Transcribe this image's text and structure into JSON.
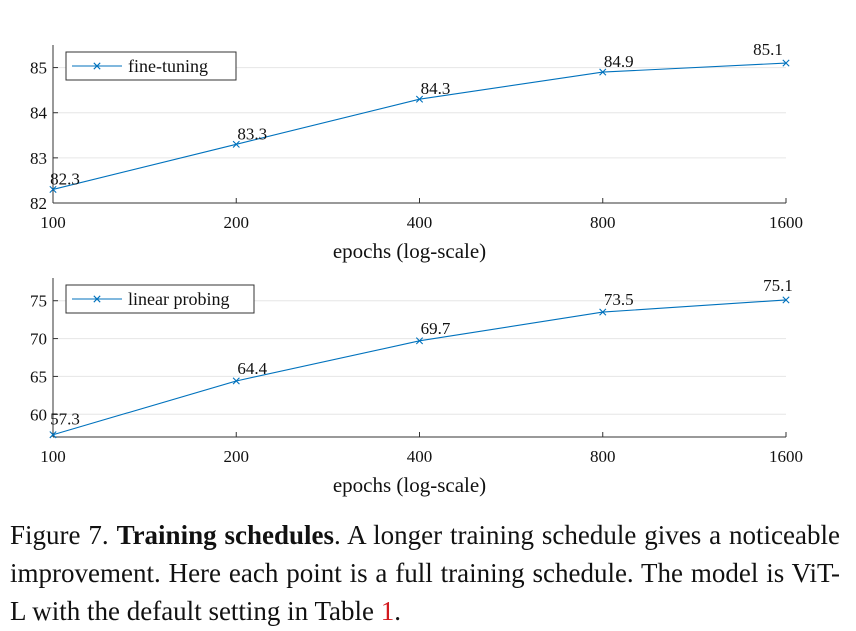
{
  "chart_data": [
    {
      "type": "line",
      "x": [
        100,
        200,
        400,
        800,
        1600
      ],
      "xticks": [
        "100",
        "200",
        "400",
        "800",
        "1600"
      ],
      "xscale": "log",
      "xlabel": "epochs (log-scale)",
      "ylim": [
        82,
        85.5
      ],
      "yticks": [
        82,
        83,
        84,
        85
      ],
      "grid": "horizontal",
      "legend_position": "top-left",
      "series": [
        {
          "name": "fine-tuning",
          "values": [
            82.3,
            83.3,
            84.3,
            84.9,
            85.1
          ],
          "marker": "x",
          "color": "#0072bd"
        }
      ],
      "data_labels": [
        "82.3",
        "83.3",
        "84.3",
        "84.9",
        "85.1"
      ]
    },
    {
      "type": "line",
      "x": [
        100,
        200,
        400,
        800,
        1600
      ],
      "xticks": [
        "100",
        "200",
        "400",
        "800",
        "1600"
      ],
      "xscale": "log",
      "xlabel": "epochs (log-scale)",
      "ylim": [
        57,
        78
      ],
      "yticks": [
        60,
        65,
        70,
        75
      ],
      "grid": "horizontal",
      "legend_position": "top-left",
      "series": [
        {
          "name": "linear probing",
          "values": [
            57.3,
            64.4,
            69.7,
            73.5,
            75.1
          ],
          "marker": "x",
          "color": "#0072bd"
        }
      ],
      "data_labels": [
        "57.3",
        "64.4",
        "69.7",
        "73.5",
        "75.1"
      ]
    }
  ],
  "caption": {
    "prefix": "Figure 7. ",
    "title": "Training schedules",
    "text_before_ref": ". A longer training schedule gives a noticeable improvement. Here each point is a full training schedule. The model is ViT-L with the default setting in Table ",
    "ref": "1",
    "text_after_ref": "."
  }
}
